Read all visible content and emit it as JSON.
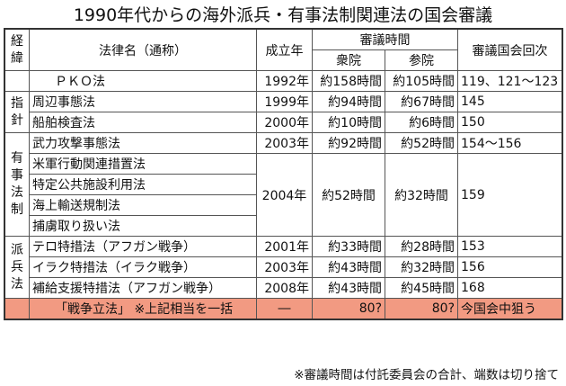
{
  "title": "1990年代からの海外派兵・有事法制関連法の国会審議",
  "header": {
    "category": [
      "経",
      "緯"
    ],
    "law_name": "法律名（通称）",
    "year": "成立年",
    "hours": "審議時間",
    "lower_house": "衆院",
    "upper_house": "参院",
    "sessions": "審議国会回次"
  },
  "groups": {
    "guidelines": [
      "指",
      "針"
    ],
    "emergency": [
      "有",
      "事",
      "法",
      "制"
    ],
    "dispatch": [
      "派",
      "兵",
      "法"
    ]
  },
  "rows": [
    {
      "law": "ＰＫＯ法",
      "year": "1992年",
      "lower": "約158時間",
      "upper": "約105時間",
      "sessions": "119、121～123"
    },
    {
      "law": "周辺事態法",
      "year": "1999年",
      "lower": "約94時間",
      "upper": "約67時間",
      "sessions": "145"
    },
    {
      "law": "船舶検査法",
      "year": "2000年",
      "lower": "約10時間",
      "upper": "約6時間",
      "sessions": "150"
    },
    {
      "law": "武力攻撃事態法",
      "year": "2003年",
      "lower": "約92時間",
      "upper": "約52時間",
      "sessions": "154～156"
    },
    {
      "law": "米軍行動関連措置法"
    },
    {
      "law": "特定公共施設利用法"
    },
    {
      "law": "海上輸送規制法"
    },
    {
      "law": "捕虜取り扱い法"
    },
    {
      "law": "テロ特措法（アフガン戦争）",
      "year": "2001年",
      "lower": "約33時間",
      "upper": "約28時間",
      "sessions": "153"
    },
    {
      "law": "イラク特措法（イラク戦争）",
      "year": "2003年",
      "lower": "約43時間",
      "upper": "約32時間",
      "sessions": "156"
    },
    {
      "law": "補給支援特措法（アフガン戦争）",
      "year": "2008年",
      "lower": "約43時間",
      "upper": "約45時間",
      "sessions": "168"
    }
  ],
  "merged_2004": {
    "year": "2004年",
    "lower": "約52時間",
    "upper": "約32時間",
    "sessions": "159"
  },
  "highlight": {
    "law": "「戦争立法」 ※上記相当を一括",
    "year": "―",
    "lower": "80?",
    "upper": "80?",
    "sessions": "今国会中狙う",
    "color": "#f29a82"
  },
  "note": "※審議時間は付託委員会の合計、端数は切り捨て"
}
